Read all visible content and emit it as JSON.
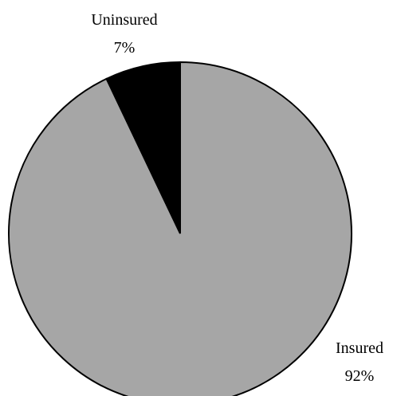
{
  "chart_data": {
    "type": "pie",
    "slices": [
      {
        "label": "Insured",
        "percent_label": "92%",
        "value": 92,
        "color": "#a6a6a6"
      },
      {
        "label": "Uninsured",
        "percent_label": "7%",
        "value": 7,
        "color": "#000000"
      }
    ],
    "start_angle": "12 o'clock",
    "direction": "clockwise",
    "outline_color": "#000000"
  }
}
